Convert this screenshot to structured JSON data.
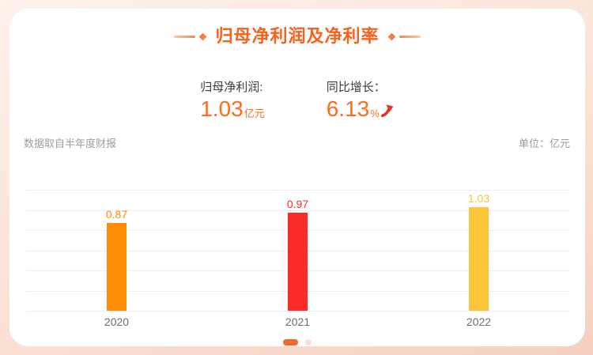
{
  "theme": {
    "accent_orange": "#f8601c",
    "stat_value_color": "#fa6c1e",
    "arrow_red": "#e5302c",
    "gridline_color": "#eeeef2",
    "dot_active_color": "#ed6a31",
    "dot_inactive_color": "#fbdfd0",
    "bg_start": "#fdf1ea",
    "bg_end": "#f6d0c0"
  },
  "header": {
    "title": "归母净利润及净利率"
  },
  "stats": {
    "net_profit": {
      "label": "归母净利润:",
      "value": "1.03",
      "unit": "亿元"
    },
    "yoy_growth": {
      "label": "同比增长：",
      "value": "6.13",
      "unit": "%"
    }
  },
  "meta": {
    "source_note": "数据取自半年度财报",
    "unit_note": "单位：亿元"
  },
  "chart_data": {
    "type": "bar",
    "title": "归母净利润及净利率",
    "xlabel": "",
    "ylabel": "单位：亿元",
    "categories": [
      "2020",
      "2021",
      "2022"
    ],
    "values": [
      0.87,
      0.97,
      1.03
    ],
    "value_labels": [
      "0.87",
      "0.97",
      "1.03"
    ],
    "bar_colors": [
      "#ff8c05",
      "#fb2b2b",
      "#fbc63c"
    ],
    "ylim": [
      0,
      1.2
    ],
    "gridline_step": 0.2,
    "grid": true,
    "legend": false
  },
  "pagination": {
    "dots": [
      {
        "active": true
      },
      {
        "active": false
      }
    ]
  }
}
